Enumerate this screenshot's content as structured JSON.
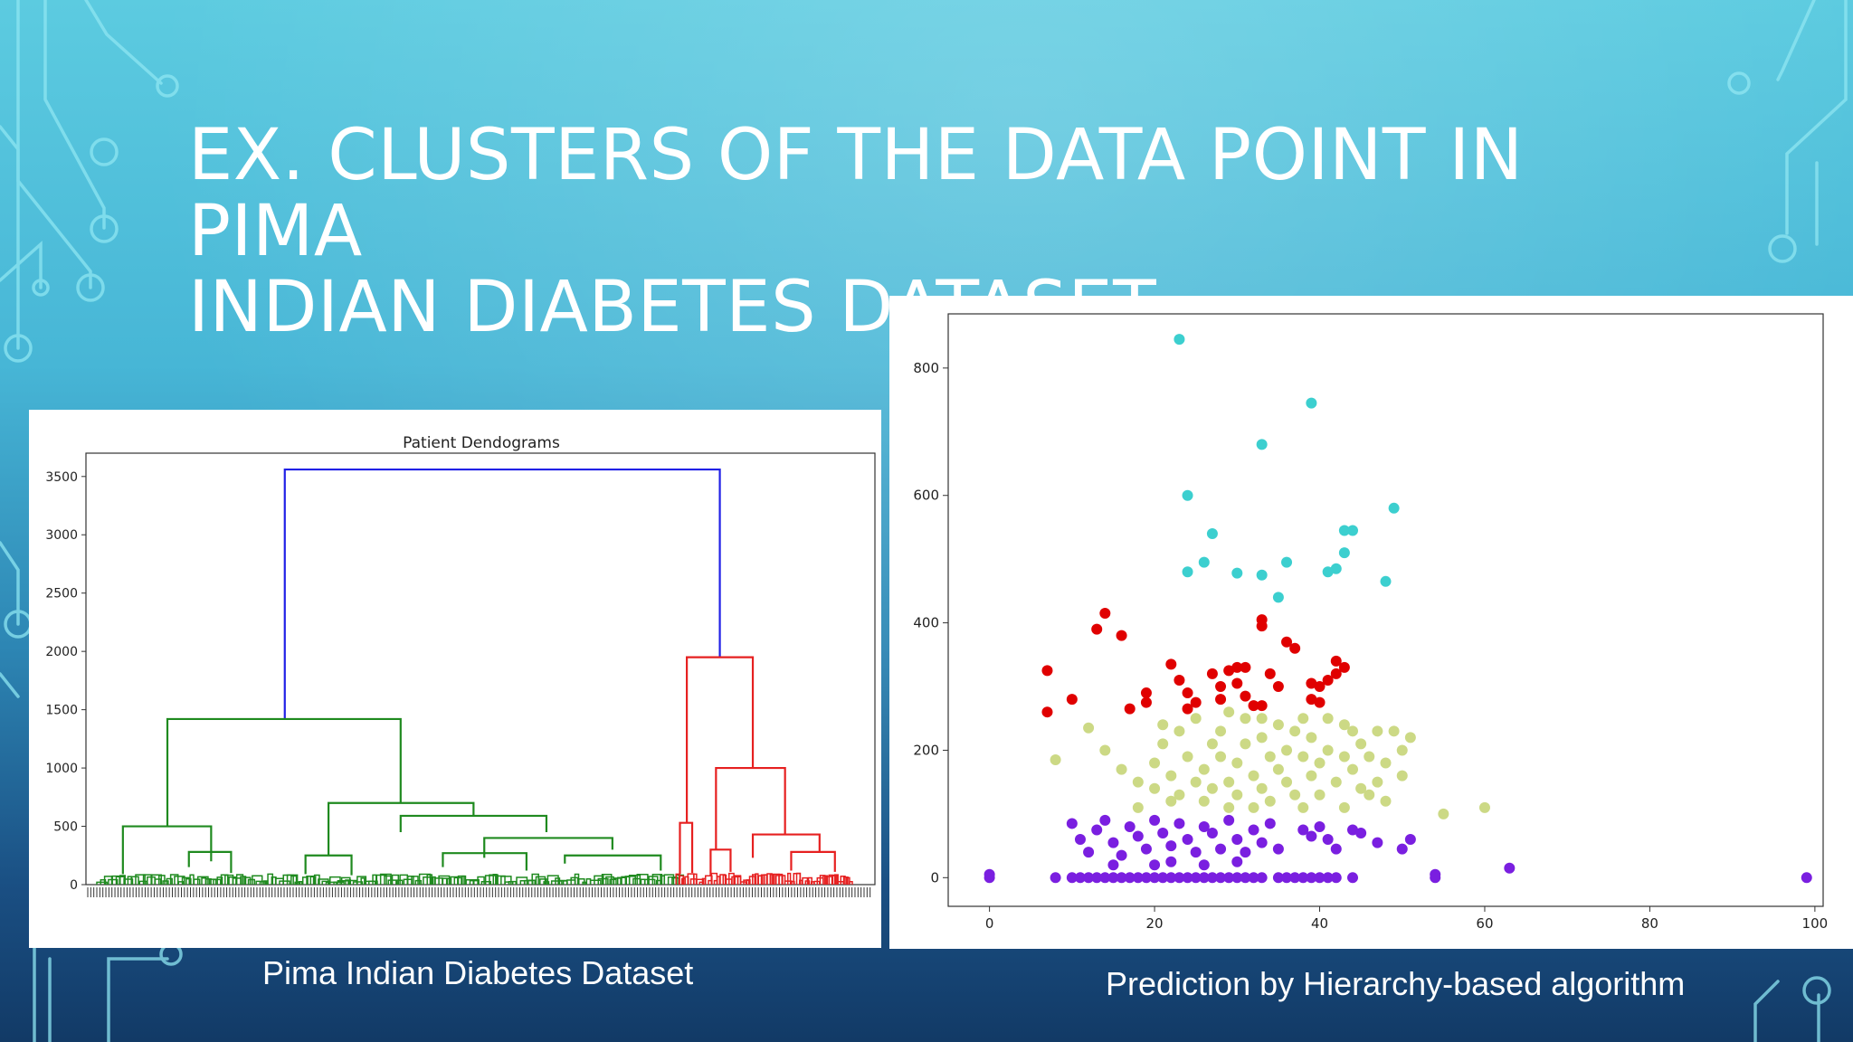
{
  "slide": {
    "title_line1": "EX. CLUSTERS OF THE DATA POINT IN PIMA",
    "title_line2": "INDIAN DIABETES DATASET",
    "caption_left": "Pima Indian Diabetes Dataset",
    "caption_right": "Prediction by Hierarchy-based algorithm",
    "colors": {
      "title": "#ffffff",
      "circuit": "#8ee6f2"
    }
  },
  "chart_data": [
    {
      "type": "dendrogram",
      "title": "Patient Dendograms",
      "ylim": [
        0,
        3700
      ],
      "yticks": [
        0,
        500,
        1000,
        1500,
        2000,
        2500,
        3000,
        3500
      ],
      "link_colors": {
        "green": "#1f8a1f",
        "red": "#e62020",
        "blue": "#2020e6"
      },
      "top_merge_height": 3560,
      "clusters": [
        {
          "color": "green",
          "merge_height": 1420
        },
        {
          "color": "red",
          "merge_height": 1950
        }
      ],
      "merges": [
        {
          "color": "blue",
          "x": [
            0.245,
            0.245,
            0.812,
            0.812
          ],
          "y": [
            1420,
            3560,
            3560,
            1950
          ]
        },
        {
          "color": "green",
          "x": [
            0.092,
            0.092,
            0.396,
            0.396
          ],
          "y": [
            500,
            1420,
            1420,
            700
          ]
        },
        {
          "color": "green",
          "x": [
            0.034,
            0.034,
            0.149,
            0.149
          ],
          "y": [
            90,
            500,
            500,
            200
          ]
        },
        {
          "color": "green",
          "x": [
            0.302,
            0.302,
            0.491,
            0.491
          ],
          "y": [
            250,
            700,
            700,
            590
          ]
        },
        {
          "color": "green",
          "x": [
            0.396,
            0.396,
            0.586,
            0.586
          ],
          "y": [
            450,
            590,
            590,
            450
          ]
        },
        {
          "color": "green",
          "x": [
            0.505,
            0.505,
            0.672,
            0.672
          ],
          "y": [
            230,
            400,
            400,
            300
          ]
        },
        {
          "color": "green",
          "x": [
            0.451,
            0.451,
            0.56,
            0.56
          ],
          "y": [
            150,
            270,
            270,
            120
          ]
        },
        {
          "color": "green",
          "x": [
            0.61,
            0.61,
            0.735,
            0.735
          ],
          "y": [
            180,
            250,
            250,
            120
          ]
        },
        {
          "color": "green",
          "x": [
            0.272,
            0.272,
            0.332,
            0.332
          ],
          "y": [
            90,
            250,
            250,
            80
          ]
        },
        {
          "color": "green",
          "x": [
            0.12,
            0.12,
            0.175,
            0.175
          ],
          "y": [
            150,
            280,
            280,
            100
          ]
        },
        {
          "color": "red",
          "x": [
            0.769,
            0.769,
            0.855,
            0.855
          ],
          "y": [
            530,
            1950,
            1950,
            1000
          ]
        },
        {
          "color": "red",
          "x": [
            0.807,
            0.807,
            0.897,
            0.897
          ],
          "y": [
            300,
            1000,
            1000,
            430
          ]
        },
        {
          "color": "red",
          "x": [
            0.855,
            0.855,
            0.942,
            0.942
          ],
          "y": [
            230,
            430,
            430,
            280
          ]
        },
        {
          "color": "red",
          "x": [
            0.76,
            0.76,
            0.776,
            0.776
          ],
          "y": [
            90,
            530,
            530,
            100
          ]
        },
        {
          "color": "red",
          "x": [
            0.905,
            0.905,
            0.962,
            0.962
          ],
          "y": [
            120,
            280,
            280,
            110
          ]
        },
        {
          "color": "red",
          "x": [
            0.8,
            0.8,
            0.826,
            0.826
          ],
          "y": [
            80,
            300,
            300,
            110
          ]
        }
      ]
    },
    {
      "type": "scatter",
      "title": "",
      "xlim": [
        -5,
        101
      ],
      "ylim": [
        -45,
        885
      ],
      "xticks": [
        0,
        20,
        40,
        60,
        80,
        100
      ],
      "yticks": [
        0,
        200,
        400,
        600,
        800
      ],
      "grid": false,
      "series": [
        {
          "color": "#3ccfcf",
          "points": [
            [
              23,
              845
            ],
            [
              39,
              745
            ],
            [
              33,
              680
            ],
            [
              24,
              600
            ],
            [
              49,
              580
            ],
            [
              27,
              540
            ],
            [
              44,
              545
            ],
            [
              43,
              545
            ],
            [
              26,
              495
            ],
            [
              36,
              495
            ],
            [
              24,
              480
            ],
            [
              30,
              478
            ],
            [
              33,
              475
            ],
            [
              42,
              485
            ],
            [
              41,
              480
            ],
            [
              48,
              465
            ],
            [
              43,
              510
            ],
            [
              35,
              440
            ]
          ]
        },
        {
          "color": "#e00000",
          "points": [
            [
              14,
              415
            ],
            [
              13,
              390
            ],
            [
              16,
              380
            ],
            [
              33,
              405
            ],
            [
              33,
              395
            ],
            [
              7,
              325
            ],
            [
              10,
              280
            ],
            [
              7,
              260
            ],
            [
              17,
              265
            ],
            [
              19,
              290
            ],
            [
              19,
              275
            ],
            [
              22,
              335
            ],
            [
              23,
              310
            ],
            [
              24,
              290
            ],
            [
              25,
              275
            ],
            [
              24,
              265
            ],
            [
              27,
              320
            ],
            [
              28,
              280
            ],
            [
              29,
              325
            ],
            [
              30,
              330
            ],
            [
              31,
              330
            ],
            [
              28,
              300
            ],
            [
              31,
              285
            ],
            [
              32,
              270
            ],
            [
              33,
              270
            ],
            [
              34,
              320
            ],
            [
              36,
              370
            ],
            [
              37,
              360
            ],
            [
              39,
              305
            ],
            [
              40,
              300
            ],
            [
              41,
              310
            ],
            [
              42,
              340
            ],
            [
              43,
              330
            ],
            [
              42,
              320
            ],
            [
              39,
              280
            ],
            [
              40,
              275
            ],
            [
              30,
              305
            ],
            [
              35,
              300
            ]
          ]
        },
        {
          "color": "#ccd985",
          "points": [
            [
              8,
              185
            ],
            [
              12,
              235
            ],
            [
              14,
              200
            ],
            [
              16,
              170
            ],
            [
              18,
              150
            ],
            [
              18,
              110
            ],
            [
              20,
              180
            ],
            [
              20,
              140
            ],
            [
              21,
              210
            ],
            [
              22,
              160
            ],
            [
              22,
              120
            ],
            [
              23,
              230
            ],
            [
              23,
              130
            ],
            [
              24,
              190
            ],
            [
              25,
              150
            ],
            [
              26,
              170
            ],
            [
              26,
              120
            ],
            [
              27,
              210
            ],
            [
              27,
              140
            ],
            [
              28,
              230
            ],
            [
              28,
              190
            ],
            [
              29,
              150
            ],
            [
              29,
              110
            ],
            [
              30,
              180
            ],
            [
              30,
              130
            ],
            [
              31,
              250
            ],
            [
              31,
              210
            ],
            [
              32,
              160
            ],
            [
              32,
              110
            ],
            [
              33,
              220
            ],
            [
              33,
              140
            ],
            [
              34,
              190
            ],
            [
              34,
              120
            ],
            [
              35,
              170
            ],
            [
              35,
              240
            ],
            [
              36,
              200
            ],
            [
              36,
              150
            ],
            [
              37,
              230
            ],
            [
              37,
              130
            ],
            [
              38,
              190
            ],
            [
              38,
              110
            ],
            [
              39,
              160
            ],
            [
              39,
              220
            ],
            [
              40,
              180
            ],
            [
              40,
              130
            ],
            [
              41,
              250
            ],
            [
              41,
              200
            ],
            [
              42,
              150
            ],
            [
              43,
              190
            ],
            [
              43,
              110
            ],
            [
              44,
              230
            ],
            [
              44,
              170
            ],
            [
              45,
              140
            ],
            [
              45,
              210
            ],
            [
              46,
              190
            ],
            [
              47,
              230
            ],
            [
              47,
              150
            ],
            [
              48,
              180
            ],
            [
              48,
              120
            ],
            [
              49,
              230
            ],
            [
              50,
              160
            ],
            [
              51,
              220
            ],
            [
              55,
              100
            ],
            [
              60,
              110
            ],
            [
              25,
              250
            ],
            [
              29,
              260
            ],
            [
              33,
              250
            ],
            [
              21,
              240
            ],
            [
              38,
              250
            ],
            [
              43,
              240
            ],
            [
              46,
              130
            ],
            [
              50,
              200
            ]
          ]
        },
        {
          "color": "#7a1fe0",
          "points": [
            [
              0,
              0
            ],
            [
              0,
              5
            ],
            [
              8,
              0
            ],
            [
              10,
              0
            ],
            [
              11,
              0
            ],
            [
              12,
              0
            ],
            [
              13,
              0
            ],
            [
              14,
              0
            ],
            [
              15,
              0
            ],
            [
              16,
              0
            ],
            [
              17,
              0
            ],
            [
              18,
              0
            ],
            [
              19,
              0
            ],
            [
              20,
              0
            ],
            [
              21,
              0
            ],
            [
              22,
              0
            ],
            [
              23,
              0
            ],
            [
              24,
              0
            ],
            [
              25,
              0
            ],
            [
              26,
              0
            ],
            [
              27,
              0
            ],
            [
              28,
              0
            ],
            [
              29,
              0
            ],
            [
              30,
              0
            ],
            [
              31,
              0
            ],
            [
              32,
              0
            ],
            [
              33,
              0
            ],
            [
              35,
              0
            ],
            [
              36,
              0
            ],
            [
              37,
              0
            ],
            [
              38,
              0
            ],
            [
              39,
              0
            ],
            [
              40,
              0
            ],
            [
              41,
              0
            ],
            [
              42,
              0
            ],
            [
              44,
              0
            ],
            [
              54,
              0
            ],
            [
              99,
              0
            ],
            [
              63,
              15
            ],
            [
              10,
              85
            ],
            [
              11,
              60
            ],
            [
              12,
              40
            ],
            [
              13,
              75
            ],
            [
              14,
              90
            ],
            [
              15,
              55
            ],
            [
              16,
              35
            ],
            [
              17,
              80
            ],
            [
              18,
              65
            ],
            [
              19,
              45
            ],
            [
              20,
              90
            ],
            [
              21,
              70
            ],
            [
              22,
              50
            ],
            [
              23,
              85
            ],
            [
              24,
              60
            ],
            [
              25,
              40
            ],
            [
              26,
              80
            ],
            [
              27,
              70
            ],
            [
              28,
              45
            ],
            [
              29,
              90
            ],
            [
              30,
              60
            ],
            [
              31,
              40
            ],
            [
              32,
              75
            ],
            [
              33,
              55
            ],
            [
              34,
              85
            ],
            [
              35,
              45
            ],
            [
              38,
              75
            ],
            [
              39,
              65
            ],
            [
              40,
              80
            ],
            [
              41,
              60
            ],
            [
              42,
              45
            ],
            [
              44,
              75
            ],
            [
              45,
              70
            ],
            [
              47,
              55
            ],
            [
              50,
              45
            ],
            [
              51,
              60
            ],
            [
              54,
              5
            ],
            [
              15,
              20
            ],
            [
              20,
              20
            ],
            [
              22,
              25
            ],
            [
              26,
              20
            ],
            [
              30,
              25
            ]
          ]
        }
      ]
    }
  ]
}
